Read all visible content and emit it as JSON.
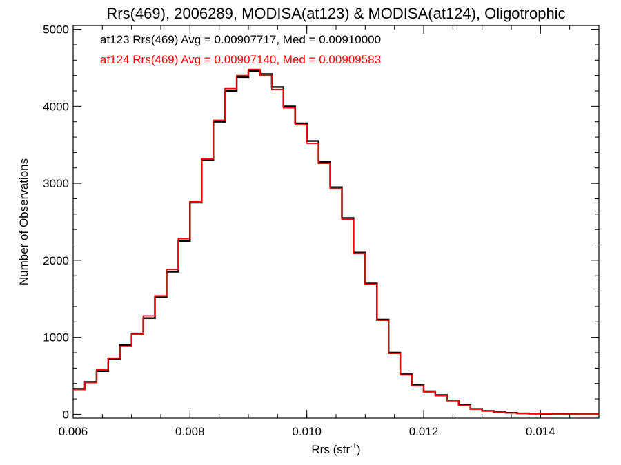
{
  "chart_data": {
    "type": "line",
    "title": "Rrs(469), 2006289, MODISA(at123) & MODISA(at124), Oligotrophic",
    "xlabel_main": "Rrs (str",
    "xlabel_sup": "-1",
    "xlabel_close": ")",
    "ylabel": "Number of Observations",
    "xlim": [
      0.006,
      0.015
    ],
    "ylim": [
      -50,
      5050
    ],
    "xticks": [
      0.006,
      0.008,
      0.01,
      0.012,
      0.014
    ],
    "xtick_labels": [
      "0.006",
      "0.008",
      "0.010",
      "0.012",
      "0.014"
    ],
    "yticks": [
      0,
      1000,
      2000,
      3000,
      4000,
      5000
    ],
    "ytick_labels": [
      "0",
      "1000",
      "2000",
      "3000",
      "4000",
      "5000"
    ],
    "grid": false,
    "legend_placement": "top-left",
    "series": [
      {
        "name": "at123",
        "label": "at123 Rrs(469) Avg = 0.00907717, Med = 0.00910000",
        "color": "#000000",
        "x": [
          0.006,
          0.0062,
          0.0064,
          0.0066,
          0.0068,
          0.007,
          0.0072,
          0.0074,
          0.0076,
          0.0078,
          0.008,
          0.0082,
          0.0084,
          0.0086,
          0.0088,
          0.009,
          0.0092,
          0.0094,
          0.0096,
          0.0098,
          0.01,
          0.0102,
          0.0104,
          0.0106,
          0.0108,
          0.011,
          0.0112,
          0.0114,
          0.0116,
          0.0118,
          0.012,
          0.0122,
          0.0124,
          0.0126,
          0.0128,
          0.013,
          0.0132,
          0.0134,
          0.0136,
          0.0138,
          0.014,
          0.0142,
          0.0144,
          0.0146,
          0.0148,
          0.015
        ],
        "y": [
          330,
          420,
          560,
          720,
          900,
          1050,
          1250,
          1520,
          1850,
          2250,
          2750,
          3300,
          3800,
          4200,
          4380,
          4460,
          4420,
          4250,
          4000,
          3780,
          3550,
          3280,
          2950,
          2550,
          2100,
          1700,
          1230,
          800,
          520,
          380,
          300,
          250,
          180,
          120,
          70,
          45,
          30,
          20,
          12,
          8,
          5,
          3,
          2,
          1,
          1,
          1
        ]
      },
      {
        "name": "at124",
        "label": "at124 Rrs(469) Avg = 0.00907140, Med = 0.00909583",
        "color": "#ff0000",
        "x": [
          0.006,
          0.0062,
          0.0064,
          0.0066,
          0.0068,
          0.007,
          0.0072,
          0.0074,
          0.0076,
          0.0078,
          0.008,
          0.0082,
          0.0084,
          0.0086,
          0.0088,
          0.009,
          0.0092,
          0.0094,
          0.0096,
          0.0098,
          0.01,
          0.0102,
          0.0104,
          0.0106,
          0.0108,
          0.011,
          0.0112,
          0.0114,
          0.0116,
          0.0118,
          0.012,
          0.0122,
          0.0124,
          0.0126,
          0.0128,
          0.013,
          0.0132,
          0.0134,
          0.0136,
          0.0138,
          0.014,
          0.0142,
          0.0144,
          0.0146,
          0.0148,
          0.015
        ],
        "y": [
          320,
          410,
          580,
          730,
          880,
          1040,
          1280,
          1540,
          1880,
          2280,
          2760,
          3320,
          3820,
          4230,
          4400,
          4480,
          4400,
          4220,
          3980,
          3760,
          3520,
          3260,
          2930,
          2530,
          2090,
          1690,
          1220,
          790,
          510,
          370,
          290,
          240,
          175,
          115,
          68,
          42,
          28,
          18,
          11,
          7,
          5,
          3,
          2,
          1,
          1,
          1
        ]
      }
    ]
  }
}
